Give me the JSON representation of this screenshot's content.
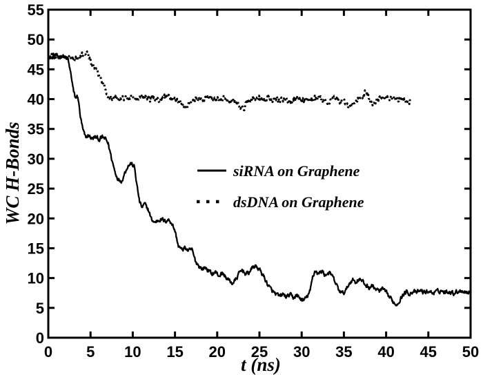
{
  "chart_data": {
    "type": "line",
    "title": "",
    "xlabel": "t (ns)",
    "ylabel": "WC H-Bonds",
    "xlim": [
      0,
      50
    ],
    "ylim": [
      0,
      55
    ],
    "xticks": [
      0,
      5,
      10,
      15,
      20,
      25,
      30,
      35,
      40,
      45,
      50
    ],
    "yticks": [
      0,
      5,
      10,
      15,
      20,
      25,
      30,
      35,
      40,
      45,
      50,
      55
    ],
    "grid": false,
    "legend_position": "inside middle-right",
    "colors": {
      "ink": "#000000",
      "background": "#ffffff"
    },
    "series": [
      {
        "name": "siRNA on Graphene",
        "style": "solid",
        "color": "#000000",
        "points": [
          [
            0,
            47.1
          ],
          [
            0.4,
            46.8
          ],
          [
            0.8,
            47.4
          ],
          [
            1.2,
            46.9
          ],
          [
            1.6,
            47.3
          ],
          [
            2.0,
            47.0
          ],
          [
            2.3,
            46.8
          ],
          [
            2.7,
            44.0
          ],
          [
            3.0,
            41.2
          ],
          [
            3.2,
            40.2
          ],
          [
            3.5,
            40.5
          ],
          [
            3.8,
            37.0
          ],
          [
            4.1,
            34.8
          ],
          [
            4.4,
            33.6
          ],
          [
            4.8,
            33.9
          ],
          [
            5.2,
            33.3
          ],
          [
            5.6,
            33.7
          ],
          [
            6.0,
            33.2
          ],
          [
            6.4,
            33.6
          ],
          [
            6.8,
            33.3
          ],
          [
            7.1,
            32.5
          ],
          [
            7.5,
            30.0
          ],
          [
            7.9,
            27.8
          ],
          [
            8.3,
            26.5
          ],
          [
            8.7,
            26.3
          ],
          [
            9.1,
            27.8
          ],
          [
            9.4,
            28.8
          ],
          [
            9.8,
            29.2
          ],
          [
            10.2,
            28.6
          ],
          [
            10.5,
            25.5
          ],
          [
            10.8,
            22.8
          ],
          [
            11.1,
            21.8
          ],
          [
            11.4,
            22.4
          ],
          [
            11.8,
            21.6
          ],
          [
            12.2,
            19.9
          ],
          [
            12.6,
            19.3
          ],
          [
            13.0,
            19.7
          ],
          [
            13.4,
            19.9
          ],
          [
            13.8,
            19.5
          ],
          [
            14.2,
            19.8
          ],
          [
            14.6,
            19.3
          ],
          [
            15.0,
            17.9
          ],
          [
            15.4,
            15.4
          ],
          [
            15.8,
            14.7
          ],
          [
            16.2,
            15.1
          ],
          [
            16.6,
            14.5
          ],
          [
            17.0,
            14.8
          ],
          [
            17.4,
            12.9
          ],
          [
            17.8,
            12.1
          ],
          [
            18.2,
            11.5
          ],
          [
            18.6,
            11.8
          ],
          [
            19.0,
            11.2
          ],
          [
            19.4,
            10.7
          ],
          [
            19.8,
            11.0
          ],
          [
            20.2,
            10.4
          ],
          [
            20.6,
            10.8
          ],
          [
            21.0,
            10.2
          ],
          [
            21.4,
            9.6
          ],
          [
            21.8,
            9.1
          ],
          [
            22.2,
            9.7
          ],
          [
            22.6,
            10.8
          ],
          [
            23.0,
            11.4
          ],
          [
            23.4,
            10.6
          ],
          [
            23.8,
            11.0
          ],
          [
            24.2,
            11.8
          ],
          [
            24.6,
            12.0
          ],
          [
            25.0,
            11.4
          ],
          [
            25.4,
            10.6
          ],
          [
            25.8,
            9.4
          ],
          [
            26.2,
            8.4
          ],
          [
            26.6,
            7.7
          ],
          [
            27.0,
            7.2
          ],
          [
            27.4,
            6.9
          ],
          [
            27.8,
            7.3
          ],
          [
            28.2,
            6.8
          ],
          [
            28.6,
            7.2
          ],
          [
            29.0,
            6.7
          ],
          [
            29.4,
            7.1
          ],
          [
            29.8,
            6.6
          ],
          [
            30.2,
            6.2
          ],
          [
            30.6,
            6.8
          ],
          [
            31.0,
            7.8
          ],
          [
            31.3,
            10.2
          ],
          [
            31.6,
            11.3
          ],
          [
            32.0,
            10.7
          ],
          [
            32.4,
            11.2
          ],
          [
            32.8,
            10.5
          ],
          [
            33.2,
            10.9
          ],
          [
            33.6,
            10.4
          ],
          [
            34.0,
            9.2
          ],
          [
            34.4,
            8.0
          ],
          [
            34.8,
            7.4
          ],
          [
            35.2,
            7.8
          ],
          [
            35.6,
            9.0
          ],
          [
            36.0,
            9.8
          ],
          [
            36.4,
            9.3
          ],
          [
            36.8,
            9.9
          ],
          [
            37.2,
            9.4
          ],
          [
            37.6,
            8.8
          ],
          [
            38.0,
            8.4
          ],
          [
            38.4,
            8.7
          ],
          [
            38.8,
            8.1
          ],
          [
            39.2,
            7.8
          ],
          [
            39.6,
            8.2
          ],
          [
            40.0,
            7.5
          ],
          [
            40.4,
            6.8
          ],
          [
            40.8,
            6.1
          ],
          [
            41.2,
            5.5
          ],
          [
            41.6,
            6.3
          ],
          [
            42.0,
            7.2
          ],
          [
            42.4,
            7.7
          ],
          [
            42.8,
            7.4
          ],
          [
            43.2,
            7.8
          ],
          [
            43.6,
            7.5
          ],
          [
            44.0,
            7.9
          ],
          [
            44.5,
            7.6
          ],
          [
            45.0,
            7.8
          ],
          [
            45.5,
            7.5
          ],
          [
            46.0,
            7.7
          ],
          [
            46.5,
            7.9
          ],
          [
            47.0,
            7.6
          ],
          [
            47.5,
            7.8
          ],
          [
            48.0,
            7.5
          ],
          [
            48.5,
            7.8
          ],
          [
            49.0,
            7.9
          ],
          [
            49.5,
            7.6
          ],
          [
            50.0,
            7.7
          ]
        ]
      },
      {
        "name": "dsDNA on Graphene",
        "style": "dotted",
        "color": "#000000",
        "points": [
          [
            0,
            47.0
          ],
          [
            0.4,
            47.4
          ],
          [
            0.8,
            46.8
          ],
          [
            1.2,
            47.3
          ],
          [
            1.6,
            46.9
          ],
          [
            2.0,
            47.2
          ],
          [
            2.4,
            46.8
          ],
          [
            2.8,
            47.1
          ],
          [
            3.2,
            46.7
          ],
          [
            3.6,
            46.9
          ],
          [
            4.0,
            47.3
          ],
          [
            4.4,
            47.9
          ],
          [
            4.7,
            47.5
          ],
          [
            5.0,
            46.4
          ],
          [
            5.3,
            45.6
          ],
          [
            5.7,
            44.7
          ],
          [
            6.0,
            43.9
          ],
          [
            6.3,
            43.3
          ],
          [
            6.6,
            42.2
          ],
          [
            6.9,
            41.2
          ],
          [
            7.2,
            40.4
          ],
          [
            7.6,
            40.1
          ],
          [
            8.0,
            40.4
          ],
          [
            8.5,
            39.9
          ],
          [
            9.0,
            40.3
          ],
          [
            9.5,
            40.0
          ],
          [
            10.0,
            40.4
          ],
          [
            10.5,
            39.9
          ],
          [
            11.0,
            40.2
          ],
          [
            11.5,
            40.5
          ],
          [
            12.0,
            40.0
          ],
          [
            12.5,
            40.3
          ],
          [
            13.0,
            39.8
          ],
          [
            13.5,
            40.2
          ],
          [
            14.0,
            40.5
          ],
          [
            14.5,
            39.9
          ],
          [
            15.0,
            40.1
          ],
          [
            15.5,
            39.6
          ],
          [
            16.0,
            39.2
          ],
          [
            16.3,
            38.6
          ],
          [
            16.7,
            39.4
          ],
          [
            17.0,
            40.0
          ],
          [
            17.5,
            40.3
          ],
          [
            18.0,
            39.9
          ],
          [
            18.5,
            40.2
          ],
          [
            19.0,
            40.4
          ],
          [
            19.5,
            39.9
          ],
          [
            20.0,
            40.2
          ],
          [
            20.5,
            39.8
          ],
          [
            21.0,
            40.1
          ],
          [
            21.5,
            39.7
          ],
          [
            22.0,
            39.9
          ],
          [
            22.4,
            39.4
          ],
          [
            22.8,
            38.4
          ],
          [
            23.1,
            38.3
          ],
          [
            23.4,
            39.2
          ],
          [
            23.8,
            39.8
          ],
          [
            24.2,
            40.2
          ],
          [
            24.6,
            39.8
          ],
          [
            25.0,
            40.1
          ],
          [
            25.5,
            39.8
          ],
          [
            26.0,
            40.2
          ],
          [
            26.5,
            39.9
          ],
          [
            27.0,
            40.3
          ],
          [
            27.5,
            39.8
          ],
          [
            28.0,
            40.1
          ],
          [
            28.5,
            39.7
          ],
          [
            29.0,
            40.0
          ],
          [
            29.5,
            40.3
          ],
          [
            30.0,
            39.8
          ],
          [
            30.5,
            40.1
          ],
          [
            31.0,
            39.7
          ],
          [
            31.5,
            40.0
          ],
          [
            32.0,
            40.3
          ],
          [
            32.5,
            39.8
          ],
          [
            33.0,
            39.4
          ],
          [
            33.5,
            39.8
          ],
          [
            34.0,
            40.1
          ],
          [
            34.5,
            39.7
          ],
          [
            35.0,
            39.5
          ],
          [
            35.5,
            39.0
          ],
          [
            36.0,
            38.9
          ],
          [
            36.4,
            39.5
          ],
          [
            36.8,
            40.0
          ],
          [
            37.2,
            40.3
          ],
          [
            37.6,
            41.4
          ],
          [
            37.9,
            40.6
          ],
          [
            38.2,
            39.4
          ],
          [
            38.6,
            39.1
          ],
          [
            39.0,
            39.8
          ],
          [
            39.4,
            40.3
          ],
          [
            39.8,
            39.9
          ],
          [
            40.2,
            40.4
          ],
          [
            40.6,
            40.0
          ],
          [
            41.0,
            40.3
          ],
          [
            41.4,
            39.8
          ],
          [
            41.8,
            40.2
          ],
          [
            42.2,
            39.9
          ],
          [
            42.6,
            39.4
          ],
          [
            42.9,
            39.7
          ]
        ]
      }
    ]
  }
}
